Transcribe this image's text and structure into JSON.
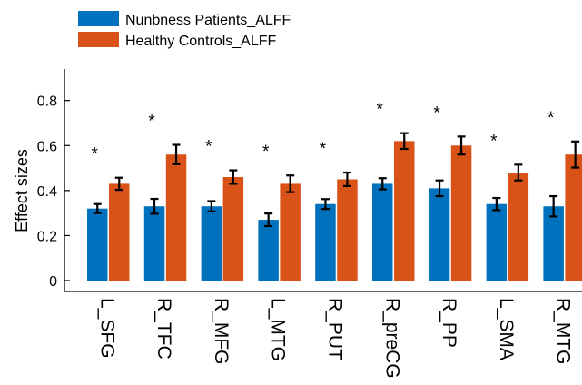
{
  "chart_data": {
    "type": "bar",
    "title": "",
    "xlabel": "",
    "ylabel": "Effect sizes",
    "ylim": [
      0,
      0.94
    ],
    "yticks": [
      0,
      0.2,
      0.4,
      0.6,
      0.8
    ],
    "ytick_labels": [
      "0",
      "0.2",
      "0.4",
      "0.6",
      "0.8"
    ],
    "grid": false,
    "legend_position": "top-left",
    "categories": [
      "L_SFG",
      "R_TFC",
      "R_MFG",
      "L_MTG",
      "R_PUT",
      "R_preCG",
      "R_PP",
      "L_SMA",
      "R_MTG"
    ],
    "series": [
      {
        "name": "Nunbness Patients_ALFF",
        "color": "#0072BD",
        "values": [
          0.32,
          0.33,
          0.33,
          0.27,
          0.34,
          0.43,
          0.41,
          0.34,
          0.33
        ],
        "errors": [
          0.02,
          0.033,
          0.023,
          0.028,
          0.022,
          0.025,
          0.035,
          0.027,
          0.045
        ]
      },
      {
        "name": "Healthy Controls_ALFF",
        "color": "#D95319",
        "values": [
          0.43,
          0.56,
          0.46,
          0.43,
          0.45,
          0.62,
          0.6,
          0.48,
          0.56
        ],
        "errors": [
          0.027,
          0.043,
          0.03,
          0.037,
          0.03,
          0.035,
          0.04,
          0.035,
          0.058
        ]
      }
    ],
    "annotations": [
      "*",
      "*",
      "*",
      "*",
      "*",
      "*",
      "*",
      "*",
      "*"
    ]
  }
}
